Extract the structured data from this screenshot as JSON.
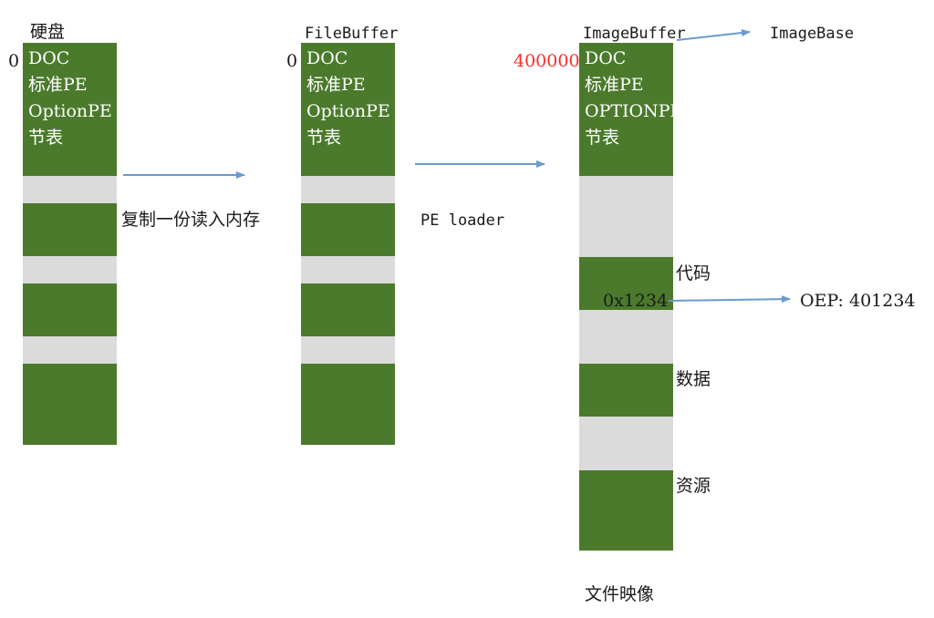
{
  "columns": {
    "disk": {
      "title": "硬盘",
      "offset": "0",
      "header_lines": [
        "DOC",
        "标准PE",
        "OptionPE",
        "节表"
      ]
    },
    "filebuffer": {
      "title": "FileBuffer",
      "offset": "0",
      "header_lines": [
        "DOC",
        "标准PE",
        "OptionPE",
        "节表"
      ]
    },
    "imagebuffer": {
      "title": "ImageBuffer",
      "offset": "400000",
      "header_lines": [
        "DOC",
        "标准PE",
        "OPTIONPE",
        "节表"
      ],
      "section_labels": {
        "code": "代码",
        "data": "数据",
        "resource": "资源"
      },
      "code_offset": "0x1234",
      "caption": "文件映像"
    }
  },
  "arrows": {
    "copy_label": "复制一份读入内存",
    "loader_label": "PE loader",
    "imagebase_label": "ImageBase",
    "oep_label": "OEP: 401234"
  },
  "colors": {
    "section": "#4b7a2c",
    "gap": "#dbdbdb",
    "arrow": "#6a9ad0",
    "offset_highlight": "#ff2a2a"
  }
}
